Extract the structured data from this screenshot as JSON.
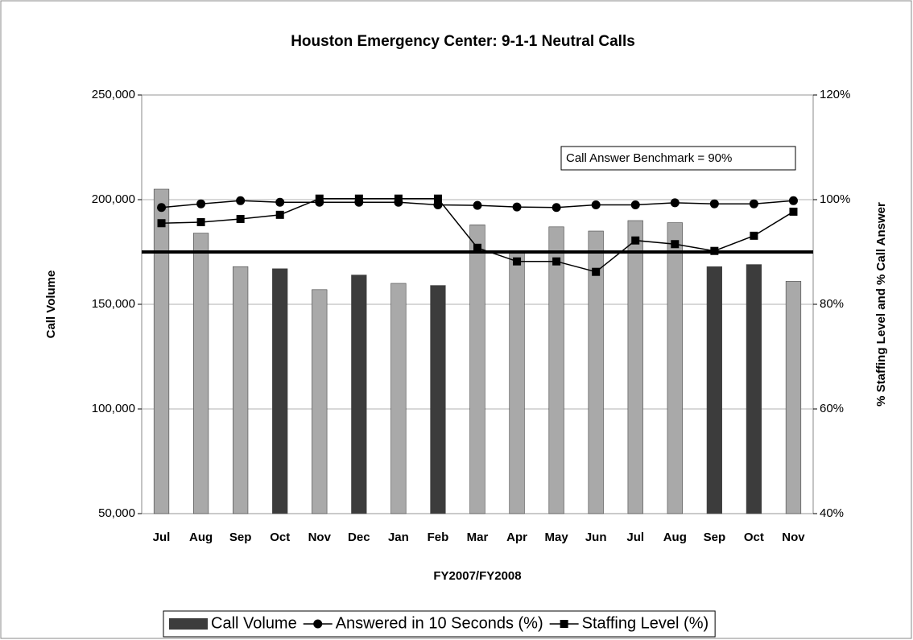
{
  "chart_data": {
    "type": "bar",
    "title": "Houston Emergency Center:  9-1-1 Neutral Calls",
    "x_label": "FY2007/FY2008",
    "y_label": "Call Volume",
    "y2_label": "% Staffing Level and % Call Answer",
    "annotation": "Call Answer Benchmark = 90%",
    "benchmark": 90,
    "categories": [
      "Jul",
      "Aug",
      "Sep",
      "Oct",
      "Nov",
      "Dec",
      "Jan",
      "Feb",
      "Mar",
      "Apr",
      "May",
      "Jun",
      "Jul",
      "Aug",
      "Sep",
      "Oct",
      "Nov"
    ],
    "series": [
      {
        "name": "Call Volume",
        "type": "bar",
        "color": "#a9a9a9",
        "colors": [
          "#a9a9a9",
          "#a9a9a9",
          "#a9a9a9",
          "#3c3c3c",
          "#a9a9a9",
          "#3c3c3c",
          "#a9a9a9",
          "#3c3c3c",
          "#a9a9a9",
          "#a9a9a9",
          "#a9a9a9",
          "#a9a9a9",
          "#a9a9a9",
          "#a9a9a9",
          "#3c3c3c",
          "#3c3c3c",
          "#a9a9a9"
        ],
        "values": [
          205000,
          184000,
          168000,
          167000,
          157000,
          164000,
          160000,
          159000,
          188000,
          175000,
          187000,
          185000,
          190000,
          189000,
          168000,
          169000,
          161000
        ]
      },
      {
        "name": "Answered in 10 Seconds (%)",
        "type": "line",
        "marker": "circle",
        "color": "#000000",
        "axis": "y2",
        "values": [
          98.5,
          99.2,
          99.8,
          99.5,
          99.5,
          99.5,
          99.5,
          99,
          98.9,
          98.6,
          98.5,
          99,
          99,
          99.4,
          99.2,
          99.2,
          99.8
        ]
      },
      {
        "name": "Staffing Level (%)",
        "type": "line",
        "marker": "square",
        "color": "#000000",
        "axis": "y2",
        "values": [
          95.5,
          95.7,
          96.3,
          97.1,
          100.2,
          100.2,
          100.2,
          100.2,
          90.8,
          88.2,
          88.2,
          86.2,
          92.2,
          91.5,
          90.2,
          93.1,
          97.7
        ]
      }
    ],
    "ylim": [
      50000,
      250000
    ],
    "yticks": [
      {
        "value": 50000,
        "label": "50,000"
      },
      {
        "value": 100000,
        "label": "100,000"
      },
      {
        "value": 150000,
        "label": "150,000"
      },
      {
        "value": 200000,
        "label": "200,000"
      },
      {
        "value": 250000,
        "label": "250,000"
      }
    ],
    "y2lim": [
      40,
      120
    ],
    "y2ticks": [
      {
        "value": 40,
        "label": "40%"
      },
      {
        "value": 60,
        "label": "60%"
      },
      {
        "value": 80,
        "label": "80%"
      },
      {
        "value": 100,
        "label": "100%"
      },
      {
        "value": 120,
        "label": "120%"
      }
    ],
    "grid": true,
    "legend": "bottom"
  }
}
